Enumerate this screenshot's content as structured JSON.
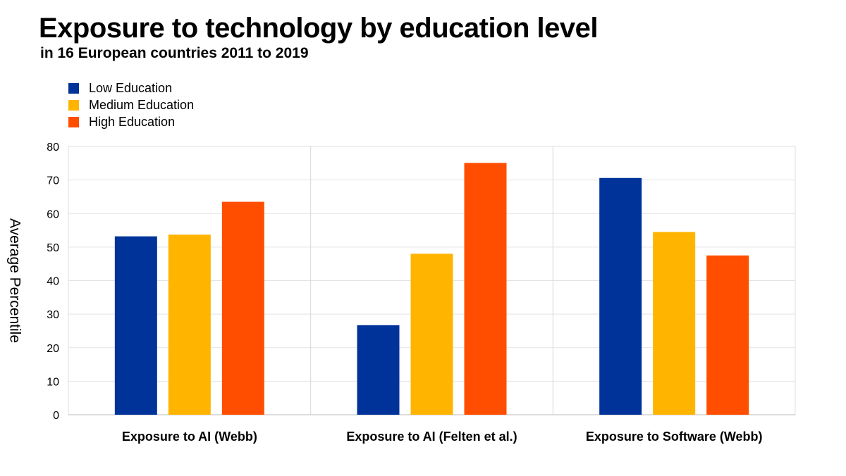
{
  "chart_data": {
    "type": "bar",
    "title": "Exposure to technology by education level",
    "subtitle": "in 16 European countries 2011 to 2019",
    "xlabel": "",
    "ylabel": "Average Percentile",
    "ylim": [
      0,
      80
    ],
    "yticks": [
      0,
      10,
      20,
      30,
      40,
      50,
      60,
      70,
      80
    ],
    "categories": [
      "Exposure to AI (Webb)",
      "Exposure to AI (Felten et al.)",
      "Exposure to Software (Webb)"
    ],
    "series": [
      {
        "name": "Low Education",
        "color": "#003399",
        "values": [
          53.2,
          26.7,
          70.6
        ]
      },
      {
        "name": "Medium Education",
        "color": "#FFB400",
        "values": [
          53.7,
          48.0,
          54.5
        ]
      },
      {
        "name": "High Education",
        "color": "#FF4E00",
        "values": [
          63.5,
          75.1,
          47.5
        ]
      }
    ],
    "legend_position": "top-left",
    "grid": true
  }
}
